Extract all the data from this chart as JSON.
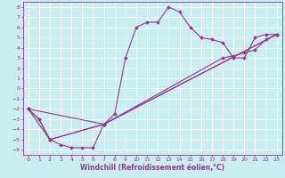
{
  "xlabel": "Windchill (Refroidissement éolien,°C)",
  "background_color": "#c8eef0",
  "line_color": "#993399",
  "grid_color": "#ffffff",
  "xlim": [
    -0.5,
    23.5
  ],
  "ylim": [
    -6.5,
    8.5
  ],
  "xticks": [
    0,
    1,
    2,
    3,
    4,
    5,
    6,
    7,
    8,
    9,
    10,
    11,
    12,
    13,
    14,
    15,
    16,
    17,
    18,
    19,
    20,
    21,
    22,
    23
  ],
  "yticks": [
    -6,
    -5,
    -4,
    -3,
    -2,
    -1,
    0,
    1,
    2,
    3,
    4,
    5,
    6,
    7,
    8
  ],
  "series1_x": [
    0,
    1,
    2,
    3,
    4,
    5,
    6,
    7,
    8,
    9,
    10,
    11,
    12,
    13,
    14,
    15,
    16,
    17,
    18,
    19,
    20,
    21,
    22,
    23
  ],
  "series1_y": [
    -2,
    -3,
    -5,
    -5.5,
    -5.8,
    -5.8,
    -5.8,
    -3.5,
    -2.5,
    3,
    6,
    6.5,
    6.5,
    8,
    7.5,
    6,
    5,
    4.8,
    4.5,
    3,
    3,
    5,
    5.3,
    5.3
  ],
  "series2_x": [
    0,
    1,
    2,
    7,
    18,
    19,
    20,
    21,
    22,
    23
  ],
  "series2_y": [
    -2,
    -3,
    -5,
    -3.5,
    3.0,
    3.2,
    3.5,
    3.8,
    4.8,
    5.3
  ],
  "series3_x": [
    0,
    2,
    7,
    23
  ],
  "series3_y": [
    -2,
    -5,
    -3.5,
    5.3
  ],
  "series4_x": [
    0,
    7,
    23
  ],
  "series4_y": [
    -2,
    -3.5,
    5.3
  ],
  "marker": "D",
  "markersize": 2.0,
  "linewidth": 0.8,
  "fontsize_tick": 4.5,
  "fontsize_label": 5.5
}
